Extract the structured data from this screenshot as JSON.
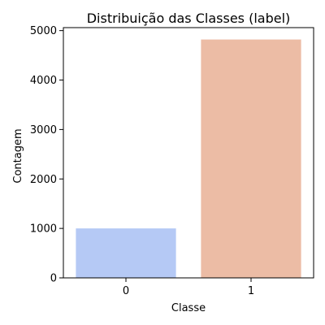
{
  "chart_data": {
    "type": "bar",
    "title": "Distribuição das Classes (label)",
    "xlabel": "Classe",
    "ylabel": "Contagem",
    "categories": [
      "0",
      "1"
    ],
    "values": [
      1000,
      4820
    ],
    "colors": [
      "#b5c9f5",
      "#ecbca5"
    ],
    "ylim": [
      0,
      5060
    ],
    "yticks": [
      0,
      1000,
      2000,
      3000,
      4000,
      5000
    ],
    "grid": false,
    "legend": "none"
  }
}
